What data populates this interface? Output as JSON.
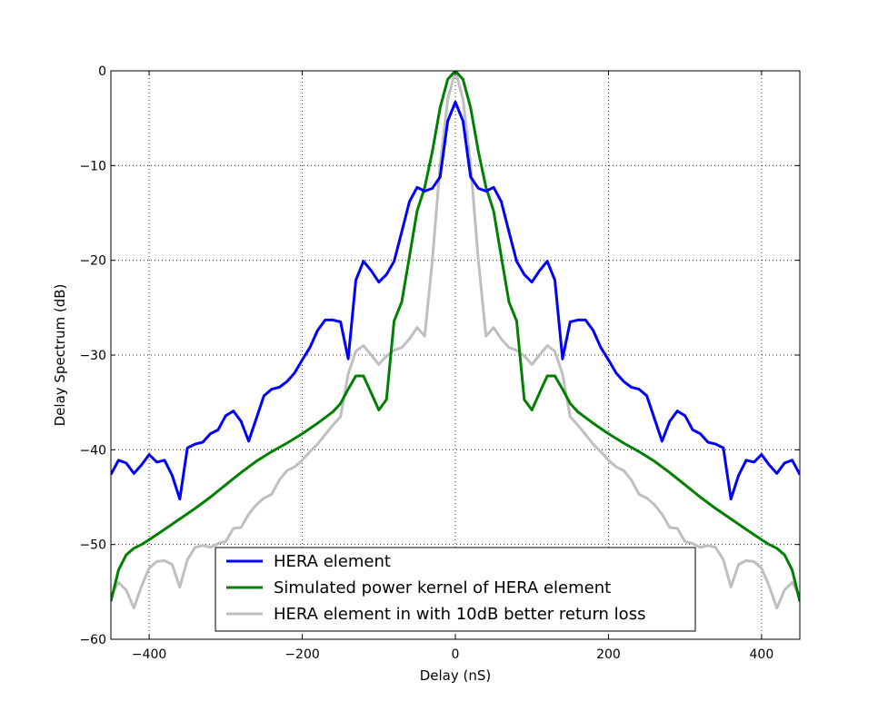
{
  "chart_data": {
    "type": "line",
    "xlabel": "Delay (nS)",
    "ylabel": "Delay Spectrum (dB)",
    "xlim": [
      -450,
      450
    ],
    "ylim": [
      -60,
      0
    ],
    "xticks": [
      -400,
      -200,
      0,
      200,
      400
    ],
    "yticks": [
      0,
      -10,
      -20,
      -30,
      -40,
      -50,
      -60
    ],
    "xtick_labels": [
      "−400",
      "−200",
      "0",
      "200",
      "400"
    ],
    "ytick_labels": [
      "0",
      "−10",
      "−20",
      "−30",
      "−40",
      "−50",
      "−60"
    ],
    "grid": true,
    "legend_position": "lower-center",
    "series": [
      {
        "name": "HERA element",
        "color": "#0000ff",
        "points": [
          [
            -450,
            -42.6
          ],
          [
            -440,
            -41.1
          ],
          [
            -430,
            -41.4
          ],
          [
            -420,
            -42.5
          ],
          [
            -410,
            -41.6
          ],
          [
            -400,
            -40.5
          ],
          [
            -390,
            -41.3
          ],
          [
            -380,
            -41.1
          ],
          [
            -370,
            -42.7
          ],
          [
            -360,
            -45.2
          ],
          [
            -350,
            -39.8
          ],
          [
            -340,
            -39.4
          ],
          [
            -330,
            -39.2
          ],
          [
            -320,
            -38.3
          ],
          [
            -310,
            -37.9
          ],
          [
            -300,
            -36.4
          ],
          [
            -290,
            -35.9
          ],
          [
            -280,
            -37.0
          ],
          [
            -270,
            -39.1
          ],
          [
            -260,
            -36.7
          ],
          [
            -250,
            -34.3
          ],
          [
            -240,
            -33.6
          ],
          [
            -230,
            -33.4
          ],
          [
            -220,
            -32.8
          ],
          [
            -210,
            -31.9
          ],
          [
            -200,
            -30.5
          ],
          [
            -190,
            -29.2
          ],
          [
            -180,
            -27.4
          ],
          [
            -170,
            -26.3
          ],
          [
            -160,
            -26.3
          ],
          [
            -150,
            -26.5
          ],
          [
            -140,
            -30.4
          ],
          [
            -130,
            -22.1
          ],
          [
            -120,
            -20.1
          ],
          [
            -110,
            -21.1
          ],
          [
            -100,
            -22.3
          ],
          [
            -90,
            -21.5
          ],
          [
            -80,
            -20.1
          ],
          [
            -70,
            -17.0
          ],
          [
            -60,
            -13.8
          ],
          [
            -50,
            -12.3
          ],
          [
            -40,
            -12.7
          ],
          [
            -30,
            -12.4
          ],
          [
            -20,
            -11.2
          ],
          [
            -10,
            -5.3
          ],
          [
            0,
            -3.3
          ],
          [
            10,
            -5.3
          ],
          [
            20,
            -11.2
          ],
          [
            30,
            -12.4
          ],
          [
            40,
            -12.7
          ],
          [
            50,
            -12.3
          ],
          [
            60,
            -13.8
          ],
          [
            70,
            -17.0
          ],
          [
            80,
            -20.1
          ],
          [
            90,
            -21.5
          ],
          [
            100,
            -22.3
          ],
          [
            110,
            -21.1
          ],
          [
            120,
            -20.1
          ],
          [
            130,
            -22.1
          ],
          [
            140,
            -30.4
          ],
          [
            150,
            -26.5
          ],
          [
            160,
            -26.3
          ],
          [
            170,
            -26.3
          ],
          [
            180,
            -27.4
          ],
          [
            190,
            -29.2
          ],
          [
            200,
            -30.5
          ],
          [
            210,
            -31.9
          ],
          [
            220,
            -32.8
          ],
          [
            230,
            -33.4
          ],
          [
            240,
            -33.6
          ],
          [
            250,
            -34.3
          ],
          [
            260,
            -36.7
          ],
          [
            270,
            -39.1
          ],
          [
            280,
            -37.0
          ],
          [
            290,
            -35.9
          ],
          [
            300,
            -36.4
          ],
          [
            310,
            -37.9
          ],
          [
            320,
            -38.3
          ],
          [
            330,
            -39.2
          ],
          [
            340,
            -39.4
          ],
          [
            350,
            -39.8
          ],
          [
            360,
            -45.2
          ],
          [
            370,
            -42.7
          ],
          [
            380,
            -41.1
          ],
          [
            390,
            -41.3
          ],
          [
            400,
            -40.5
          ],
          [
            410,
            -41.6
          ],
          [
            420,
            -42.5
          ],
          [
            430,
            -41.4
          ],
          [
            440,
            -41.1
          ],
          [
            450,
            -42.6
          ]
        ]
      },
      {
        "name": "Simulated power kernel of HERA element",
        "color": "#008000",
        "points": [
          [
            -450,
            -56.0
          ],
          [
            -440,
            -52.7
          ],
          [
            -430,
            -51.1
          ],
          [
            -420,
            -50.4
          ],
          [
            -410,
            -50.0
          ],
          [
            -400,
            -49.5
          ],
          [
            -380,
            -48.4
          ],
          [
            -360,
            -47.3
          ],
          [
            -340,
            -46.2
          ],
          [
            -320,
            -45.0
          ],
          [
            -300,
            -43.7
          ],
          [
            -280,
            -42.4
          ],
          [
            -260,
            -41.2
          ],
          [
            -240,
            -40.2
          ],
          [
            -220,
            -39.3
          ],
          [
            -200,
            -38.3
          ],
          [
            -180,
            -37.2
          ],
          [
            -160,
            -36.0
          ],
          [
            -150,
            -35.1
          ],
          [
            -140,
            -33.6
          ],
          [
            -130,
            -32.2
          ],
          [
            -120,
            -32.2
          ],
          [
            -110,
            -34.0
          ],
          [
            -100,
            -35.8
          ],
          [
            -90,
            -34.7
          ],
          [
            -80,
            -26.4
          ],
          [
            -70,
            -24.4
          ],
          [
            -60,
            -19.6
          ],
          [
            -50,
            -14.8
          ],
          [
            -40,
            -12.3
          ],
          [
            -30,
            -8.5
          ],
          [
            -20,
            -3.9
          ],
          [
            -10,
            -0.9
          ],
          [
            0,
            0.0
          ],
          [
            10,
            -0.9
          ],
          [
            20,
            -3.9
          ],
          [
            30,
            -8.5
          ],
          [
            40,
            -12.3
          ],
          [
            50,
            -14.8
          ],
          [
            60,
            -19.6
          ],
          [
            70,
            -24.4
          ],
          [
            80,
            -26.4
          ],
          [
            90,
            -34.7
          ],
          [
            100,
            -35.8
          ],
          [
            110,
            -34.0
          ],
          [
            120,
            -32.2
          ],
          [
            130,
            -32.2
          ],
          [
            140,
            -33.6
          ],
          [
            150,
            -35.1
          ],
          [
            160,
            -36.0
          ],
          [
            180,
            -37.2
          ],
          [
            200,
            -38.3
          ],
          [
            220,
            -39.3
          ],
          [
            240,
            -40.2
          ],
          [
            260,
            -41.2
          ],
          [
            280,
            -42.4
          ],
          [
            300,
            -43.7
          ],
          [
            320,
            -45.0
          ],
          [
            340,
            -46.2
          ],
          [
            360,
            -47.3
          ],
          [
            380,
            -48.4
          ],
          [
            400,
            -49.5
          ],
          [
            410,
            -50.0
          ],
          [
            420,
            -50.4
          ],
          [
            430,
            -51.1
          ],
          [
            440,
            -52.7
          ],
          [
            450,
            -56.0
          ]
        ]
      },
      {
        "name": "HERA element in with 10dB better return loss",
        "color": "#bfbfbf",
        "points": [
          [
            -450,
            -55.4
          ],
          [
            -440,
            -54.0
          ],
          [
            -430,
            -54.8
          ],
          [
            -420,
            -56.7
          ],
          [
            -410,
            -54.4
          ],
          [
            -400,
            -52.5
          ],
          [
            -390,
            -51.8
          ],
          [
            -380,
            -51.7
          ],
          [
            -370,
            -52.1
          ],
          [
            -360,
            -54.5
          ],
          [
            -350,
            -51.6
          ],
          [
            -340,
            -50.3
          ],
          [
            -330,
            -50.1
          ],
          [
            -320,
            -50.3
          ],
          [
            -310,
            -49.9
          ],
          [
            -300,
            -49.7
          ],
          [
            -290,
            -48.3
          ],
          [
            -280,
            -48.2
          ],
          [
            -270,
            -46.8
          ],
          [
            -260,
            -45.8
          ],
          [
            -250,
            -45.1
          ],
          [
            -240,
            -44.7
          ],
          [
            -230,
            -43.2
          ],
          [
            -220,
            -42.2
          ],
          [
            -210,
            -41.8
          ],
          [
            -200,
            -41.1
          ],
          [
            -190,
            -40.2
          ],
          [
            -180,
            -39.4
          ],
          [
            -170,
            -38.4
          ],
          [
            -160,
            -37.4
          ],
          [
            -150,
            -36.5
          ],
          [
            -140,
            -32.0
          ],
          [
            -130,
            -29.6
          ],
          [
            -120,
            -29.0
          ],
          [
            -110,
            -30.0
          ],
          [
            -100,
            -31.0
          ],
          [
            -90,
            -30.1
          ],
          [
            -80,
            -29.5
          ],
          [
            -70,
            -29.2
          ],
          [
            -60,
            -28.3
          ],
          [
            -50,
            -27.1
          ],
          [
            -40,
            -28.0
          ],
          [
            -30,
            -20.0
          ],
          [
            -20,
            -10.0
          ],
          [
            -10,
            -3.0
          ],
          [
            0,
            0.0
          ],
          [
            10,
            -3.0
          ],
          [
            20,
            -10.0
          ],
          [
            30,
            -20.0
          ],
          [
            40,
            -28.0
          ],
          [
            50,
            -27.1
          ],
          [
            60,
            -28.3
          ],
          [
            70,
            -29.2
          ],
          [
            80,
            -29.5
          ],
          [
            90,
            -30.1
          ],
          [
            100,
            -31.0
          ],
          [
            110,
            -30.0
          ],
          [
            120,
            -29.0
          ],
          [
            130,
            -29.6
          ],
          [
            140,
            -32.0
          ],
          [
            150,
            -36.5
          ],
          [
            160,
            -37.4
          ],
          [
            170,
            -38.4
          ],
          [
            180,
            -39.4
          ],
          [
            190,
            -40.2
          ],
          [
            200,
            -41.1
          ],
          [
            210,
            -41.8
          ],
          [
            220,
            -42.2
          ],
          [
            230,
            -43.2
          ],
          [
            240,
            -44.7
          ],
          [
            250,
            -45.1
          ],
          [
            260,
            -45.8
          ],
          [
            270,
            -46.8
          ],
          [
            280,
            -48.2
          ],
          [
            290,
            -48.3
          ],
          [
            300,
            -49.7
          ],
          [
            310,
            -49.9
          ],
          [
            320,
            -50.3
          ],
          [
            330,
            -50.1
          ],
          [
            340,
            -50.3
          ],
          [
            350,
            -51.6
          ],
          [
            360,
            -54.5
          ],
          [
            370,
            -52.1
          ],
          [
            380,
            -51.7
          ],
          [
            390,
            -51.8
          ],
          [
            400,
            -52.5
          ],
          [
            410,
            -54.4
          ],
          [
            420,
            -56.7
          ],
          [
            430,
            -54.8
          ],
          [
            440,
            -54.0
          ],
          [
            450,
            -55.4
          ]
        ]
      }
    ]
  }
}
